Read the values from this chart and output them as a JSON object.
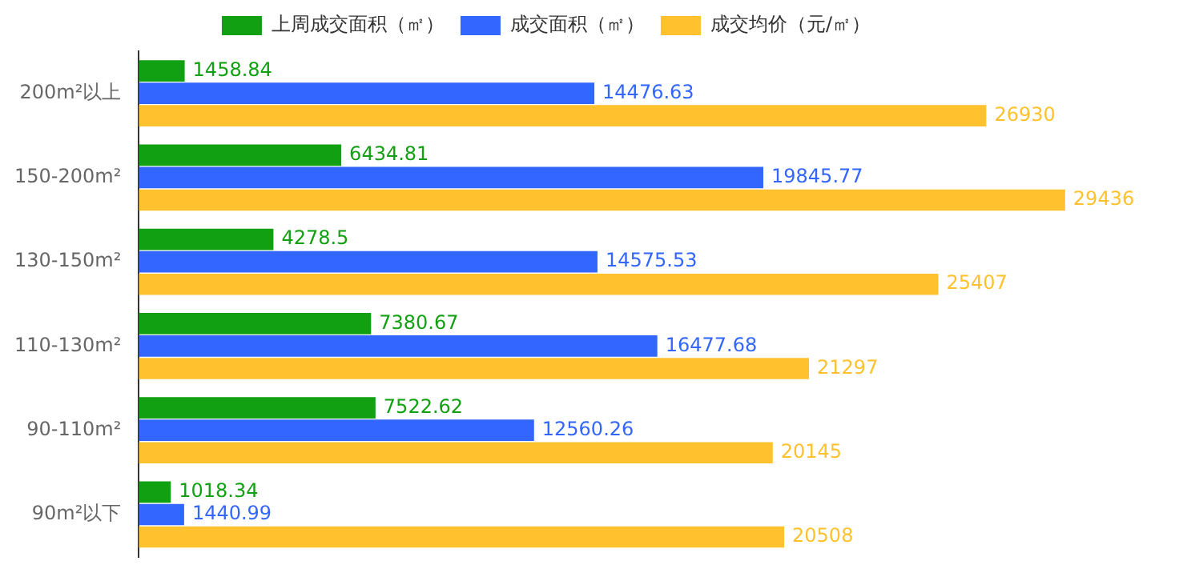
{
  "chart_data": {
    "type": "bar",
    "orientation": "horizontal",
    "categories": [
      "200m²以上",
      "150-200m²",
      "130-150m²",
      "110-130m²",
      "90-110m²",
      "90m²以下"
    ],
    "series": [
      {
        "name": "上周成交面积（㎡）",
        "color": "#11a011",
        "values": [
          1458.84,
          6434.81,
          4278.5,
          7380.67,
          7522.62,
          1018.34
        ]
      },
      {
        "name": "成交面积（㎡）",
        "color": "#3366ff",
        "values": [
          14476.63,
          19845.77,
          14575.53,
          16477.68,
          12560.26,
          1440.99
        ]
      },
      {
        "name": "成交均价（元/㎡）",
        "color": "#ffc22e",
        "values": [
          26930,
          29436,
          25407,
          21297,
          20145,
          20508
        ]
      }
    ],
    "data_labels": true,
    "legend": "top",
    "tick_labels": "y"
  }
}
